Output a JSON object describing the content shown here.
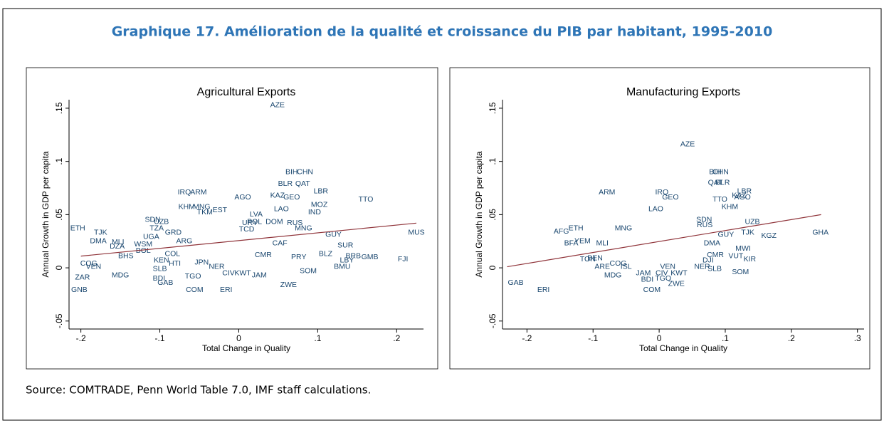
{
  "title": "Graphique 17. Amélioration de la qualité et croissance du PIB par habitant, 1995-2010",
  "source": "Source: COMTRADE, Penn World Table 7.0, IMF staff calculations.",
  "chart_data": [
    {
      "type": "scatter",
      "title": "Agricultural Exports",
      "xlabel": "Total Change in Quality",
      "ylabel": "Annual Growth in GDP per capita",
      "xlim": [
        -0.215,
        0.234
      ],
      "ylim": [
        -0.0575,
        0.158
      ],
      "xticks": [
        {
          "value": -0.2,
          "label": "-.2"
        },
        {
          "value": -0.1,
          "label": "-.1"
        },
        0,
        {
          "value": 0.1,
          "label": ".1"
        },
        {
          "value": 0.2,
          "label": ".2"
        }
      ],
      "yticks": [
        {
          "value": -0.05,
          "label": "-.05"
        },
        0,
        {
          "value": 0.05,
          "label": ".05"
        },
        {
          "value": 0.1,
          "label": ".1"
        },
        {
          "value": 0.15,
          "label": ".15"
        }
      ],
      "color": "#1a476f",
      "labels": [
        "AZE",
        "BIH",
        "CHN",
        "BLR",
        "QAT",
        "LBR",
        "TTO",
        "IRQ",
        "ARM",
        "AGO",
        "KAZ",
        "GEO",
        "MOZ",
        "KHM",
        "MNG",
        "LAO",
        "EST",
        "TKM",
        "IND",
        "LVA",
        "SDN",
        "UZB",
        "POL",
        "DOM",
        "RUS",
        "MNG",
        "ETH",
        "TJK",
        "TZA",
        "GRD",
        "UGA",
        "GUY",
        "SUR",
        "MUS",
        "DMA",
        "MLI",
        "DZA",
        "WSM",
        "ARG",
        "BOL",
        "BHS",
        "COL",
        "PRY",
        "BLZ",
        "BMU",
        "LBY",
        "BRB",
        "GMB",
        "FJI",
        "CIV",
        "KWT",
        "JAM",
        "SOM",
        "CMR",
        "COG",
        "VEN",
        "ZAR",
        "MDG",
        "KEN",
        "HTI",
        "SLB",
        "BDI",
        "GAB",
        "TGO",
        "JPN",
        "NER",
        "COM",
        "ERI",
        "ZWE",
        "GNB",
        "URY",
        "TCD",
        "CAF"
      ],
      "x": [
        0.049,
        0.067,
        0.084,
        0.059,
        0.081,
        0.104,
        0.161,
        -0.069,
        -0.051,
        0.005,
        0.049,
        0.067,
        0.102,
        -0.066,
        -0.047,
        0.054,
        -0.024,
        -0.043,
        0.096,
        0.022,
        -0.109,
        -0.098,
        0.02,
        0.045,
        0.071,
        0.082,
        -0.204,
        -0.175,
        -0.104,
        -0.083,
        -0.111,
        0.12,
        0.135,
        0.225,
        -0.178,
        -0.153,
        -0.154,
        -0.121,
        -0.069,
        -0.121,
        -0.143,
        -0.084,
        0.076,
        0.11,
        0.131,
        0.137,
        0.145,
        0.166,
        0.208,
        -0.013,
        0.005,
        0.026,
        0.088,
        0.031,
        -0.19,
        -0.184,
        -0.198,
        -0.15,
        -0.098,
        -0.081,
        -0.1,
        -0.101,
        -0.093,
        -0.058,
        -0.047,
        -0.028,
        -0.056,
        -0.016,
        0.063,
        -0.202,
        0.014,
        0.01,
        0.052
      ],
      "values": [
        0.153,
        0.09,
        0.09,
        0.079,
        0.079,
        0.072,
        0.064,
        0.071,
        0.071,
        0.066,
        0.068,
        0.066,
        0.059,
        0.057,
        0.057,
        0.055,
        0.054,
        0.052,
        0.052,
        0.05,
        0.045,
        0.043,
        0.043,
        0.043,
        0.042,
        0.037,
        0.037,
        0.033,
        0.037,
        0.033,
        0.029,
        0.031,
        0.021,
        0.033,
        0.025,
        0.024,
        0.02,
        0.022,
        0.025,
        0.016,
        0.011,
        0.013,
        0.01,
        0.013,
        0.001,
        0.007,
        0.011,
        0.01,
        0.008,
        -0.005,
        -0.005,
        -0.007,
        -0.003,
        0.012,
        0.004,
        0.001,
        -0.009,
        -0.007,
        0.007,
        0.004,
        -0.001,
        -0.01,
        -0.014,
        -0.008,
        0.005,
        0.001,
        -0.021,
        -0.021,
        -0.016,
        -0.021,
        0.042,
        0.036,
        0.023
      ],
      "fit": {
        "x": [
          -0.2,
          0.225
        ],
        "values": [
          0.011,
          0.042
        ],
        "color": "#90353b"
      }
    },
    {
      "type": "scatter",
      "title": "Manufacturing Exports",
      "xlabel": "Total Change in Quality",
      "ylabel": "Annual Growth in GDP per capita",
      "xlim": [
        -0.237,
        0.31
      ],
      "ylim": [
        -0.0575,
        0.158
      ],
      "xticks": [
        {
          "value": -0.2,
          "label": "-.2"
        },
        {
          "value": -0.1,
          "label": "-.1"
        },
        0,
        {
          "value": 0.1,
          "label": ".1"
        },
        {
          "value": 0.2,
          "label": ".2"
        },
        {
          "value": 0.3,
          "label": ".3"
        }
      ],
      "yticks": [
        {
          "value": -0.05,
          "label": "-.05"
        },
        0,
        {
          "value": 0.05,
          "label": ".05"
        },
        {
          "value": 0.1,
          "label": ".1"
        },
        {
          "value": 0.15,
          "label": ".15"
        }
      ],
      "color": "#1a476f",
      "labels": [
        "AZE",
        "BIH",
        "CHN",
        "QAT",
        "BLR",
        "LBR",
        "KAZ",
        "AGO",
        "ARM",
        "IRQ",
        "GEO",
        "TTO",
        "KHM",
        "LAO",
        "UZB",
        "SDN",
        "RUS",
        "MNG",
        "AFG",
        "ETH",
        "TJK",
        "KGZ",
        "GUY",
        "GHA",
        "YEM",
        "BFA",
        "MLI",
        "DMA",
        "MWI",
        "VUT",
        "KIR",
        "TON",
        "ARE",
        "COG",
        "ISL",
        "MDG",
        "JAM",
        "CIV",
        "KWT",
        "BDI",
        "TGO",
        "VEN",
        "NER",
        "SLB",
        "DJI",
        "SOM",
        "ZWE",
        "COM",
        "GAB",
        "ERI",
        "CMR",
        "BEN"
      ],
      "x": [
        0.043,
        0.085,
        0.093,
        0.085,
        0.096,
        0.129,
        0.121,
        0.126,
        -0.079,
        0.004,
        0.017,
        0.092,
        0.107,
        -0.005,
        0.141,
        0.068,
        0.069,
        -0.054,
        -0.148,
        -0.126,
        0.134,
        0.166,
        0.101,
        0.244,
        -0.116,
        -0.133,
        -0.086,
        0.08,
        0.127,
        0.116,
        0.137,
        -0.108,
        -0.086,
        -0.062,
        -0.05,
        -0.07,
        -0.024,
        0.004,
        0.03,
        -0.018,
        0.006,
        0.013,
        0.065,
        0.084,
        0.074,
        0.123,
        0.026,
        -0.011,
        -0.217,
        -0.175,
        0.085,
        -0.097
      ],
      "values": [
        0.116,
        0.09,
        0.09,
        0.08,
        0.08,
        0.072,
        0.068,
        0.066,
        0.071,
        0.071,
        0.066,
        0.064,
        0.057,
        0.055,
        0.043,
        0.045,
        0.04,
        0.037,
        0.034,
        0.037,
        0.033,
        0.03,
        0.031,
        0.033,
        0.025,
        0.023,
        0.023,
        0.023,
        0.018,
        0.011,
        0.008,
        0.008,
        0.001,
        0.004,
        0.001,
        -0.007,
        -0.005,
        -0.005,
        -0.005,
        -0.011,
        -0.01,
        0.001,
        0.001,
        -0.001,
        0.007,
        -0.004,
        -0.015,
        -0.021,
        -0.014,
        -0.021,
        0.012,
        0.009
      ],
      "fit": {
        "x": [
          -0.23,
          0.245
        ],
        "values": [
          0.001,
          0.05
        ],
        "color": "#90353b"
      }
    }
  ]
}
